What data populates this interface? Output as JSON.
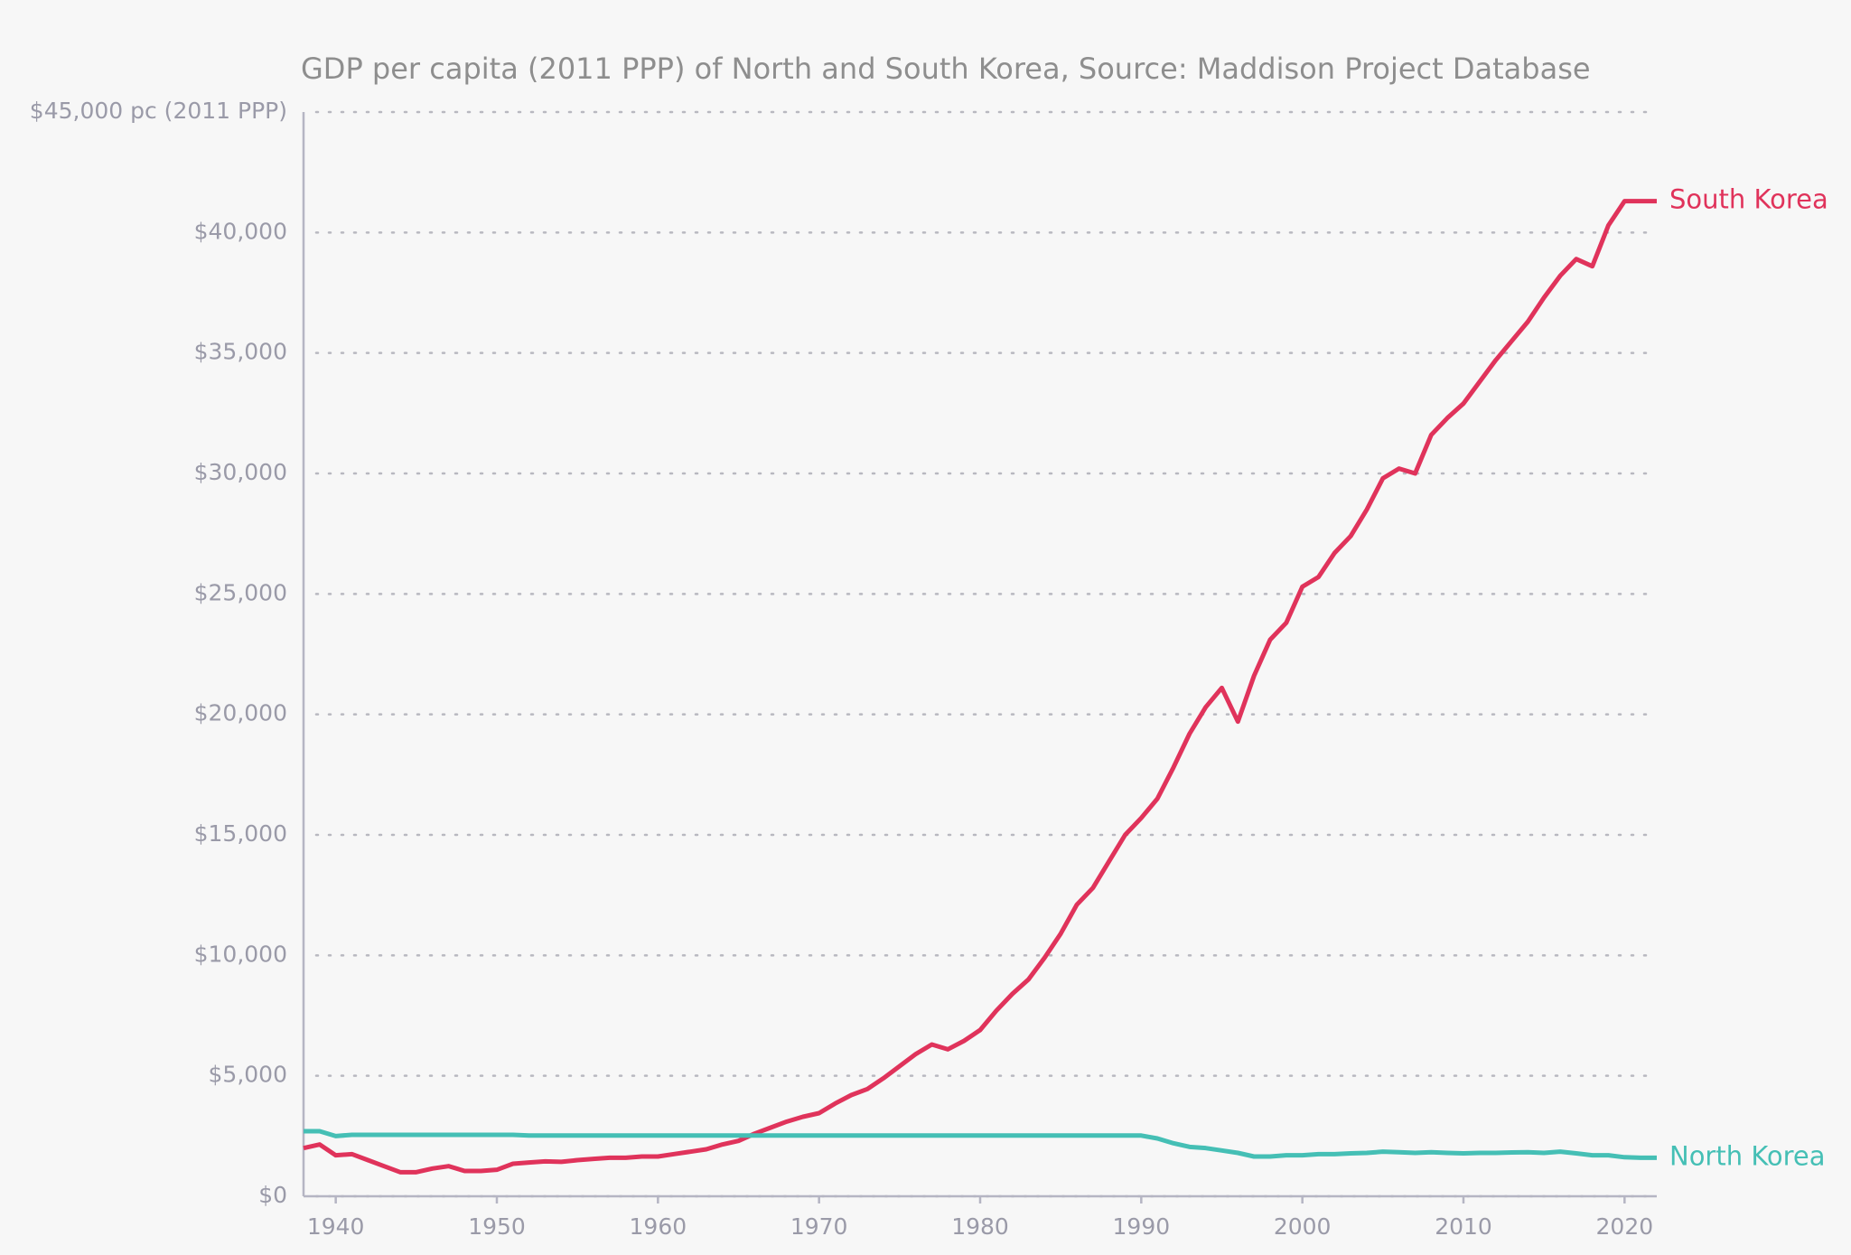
{
  "chart_data": {
    "type": "line",
    "title": "GDP per capita (2011 PPP) of North and South Korea, Source: Maddison Project Database",
    "x": [
      1938,
      1939,
      1940,
      1941,
      1942,
      1943,
      1944,
      1945,
      1946,
      1947,
      1948,
      1949,
      1950,
      1951,
      1952,
      1953,
      1954,
      1955,
      1956,
      1957,
      1958,
      1959,
      1960,
      1961,
      1962,
      1963,
      1964,
      1965,
      1966,
      1967,
      1968,
      1969,
      1970,
      1971,
      1972,
      1973,
      1974,
      1975,
      1976,
      1977,
      1978,
      1979,
      1980,
      1981,
      1982,
      1983,
      1984,
      1985,
      1986,
      1987,
      1988,
      1989,
      1990,
      1991,
      1992,
      1993,
      1994,
      1995,
      1996,
      1997,
      1998,
      1999,
      2000,
      2001,
      2002,
      2003,
      2004,
      2005,
      2006,
      2007,
      2008,
      2009,
      2010,
      2011,
      2012,
      2013,
      2014,
      2015,
      2016,
      2017,
      2018,
      2019,
      2020,
      2021,
      2022
    ],
    "series": [
      {
        "name": "South Korea",
        "color": "#e0335b",
        "values": [
          2000,
          2150,
          1700,
          1750,
          1500,
          1250,
          1000,
          1000,
          1150,
          1250,
          1050,
          1050,
          1100,
          1350,
          1400,
          1450,
          1430,
          1500,
          1550,
          1600,
          1600,
          1650,
          1650,
          1750,
          1850,
          1950,
          2150,
          2300,
          2600,
          2850,
          3100,
          3300,
          3450,
          3850,
          4200,
          4450,
          4900,
          5400,
          5900,
          6300,
          6100,
          6450,
          6900,
          7700,
          8400,
          9000,
          9900,
          10900,
          12100,
          12800,
          13900,
          15000,
          15700,
          16500,
          17800,
          19200,
          20300,
          21100,
          19700,
          21600,
          23100,
          23800,
          25300,
          25700,
          26700,
          27400,
          28500,
          29800,
          30200,
          30000,
          31600,
          32300,
          32900,
          33800,
          34700,
          35500,
          36300,
          37300,
          38200,
          38900,
          38600,
          40300,
          41300,
          41300,
          41300
        ]
      },
      {
        "name": "North Korea",
        "color": "#45bfb5",
        "values": [
          2700,
          2700,
          2500,
          2550,
          2550,
          2550,
          2550,
          2550,
          2550,
          2550,
          2550,
          2550,
          2550,
          2550,
          2520,
          2520,
          2520,
          2520,
          2520,
          2520,
          2520,
          2520,
          2520,
          2520,
          2520,
          2520,
          2520,
          2520,
          2520,
          2520,
          2520,
          2520,
          2520,
          2520,
          2520,
          2520,
          2520,
          2520,
          2520,
          2520,
          2520,
          2520,
          2520,
          2520,
          2520,
          2520,
          2520,
          2520,
          2520,
          2520,
          2520,
          2520,
          2520,
          2400,
          2200,
          2050,
          2000,
          1900,
          1800,
          1650,
          1650,
          1700,
          1700,
          1750,
          1750,
          1780,
          1800,
          1850,
          1830,
          1800,
          1830,
          1800,
          1780,
          1800,
          1800,
          1820,
          1830,
          1800,
          1850,
          1780,
          1700,
          1700,
          1620,
          1600,
          1600
        ]
      }
    ],
    "xlim": [
      1938,
      2022
    ],
    "xticks": [
      1940,
      1950,
      1960,
      1970,
      1980,
      1990,
      2000,
      2010,
      2020
    ],
    "ylim": [
      0,
      45000
    ],
    "yticks": [
      {
        "value": 0,
        "label": "$0"
      },
      {
        "value": 5000,
        "label": "$5,000"
      },
      {
        "value": 10000,
        "label": "$10,000"
      },
      {
        "value": 15000,
        "label": "$15,000"
      },
      {
        "value": 20000,
        "label": "$20,000"
      },
      {
        "value": 25000,
        "label": "$25,000"
      },
      {
        "value": 30000,
        "label": "$30,000"
      },
      {
        "value": 35000,
        "label": "$35,000"
      },
      {
        "value": 40000,
        "label": "$40,000"
      },
      {
        "value": 45000,
        "label": "$45,000 pc (2011 PPP)"
      }
    ],
    "grid": true
  }
}
